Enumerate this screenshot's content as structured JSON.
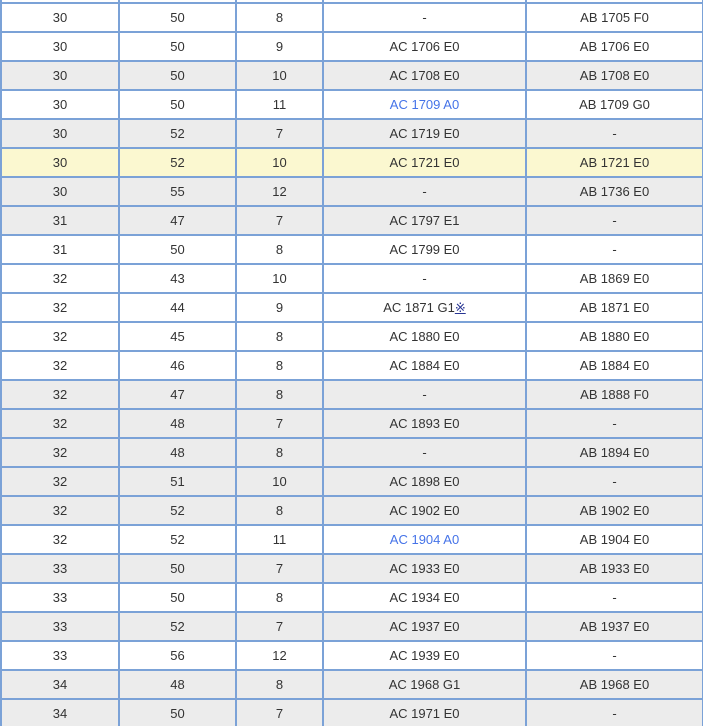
{
  "colors": {
    "border": "#7ba2d7",
    "text": "#333333",
    "row_white": "#ffffff",
    "row_gray": "#ececec",
    "row_yellow": "#fbf8d0",
    "link_blue": "#4573e8",
    "note_navy": "#283593"
  },
  "table": {
    "rows": [
      {
        "values": [
          "30",
          "50",
          "8",
          "-",
          "AB 1705 F0"
        ],
        "bg": "white"
      },
      {
        "values": [
          "30",
          "50",
          "9",
          "AC 1706 E0",
          "AB 1706 E0"
        ],
        "bg": "white"
      },
      {
        "values": [
          "30",
          "50",
          "10",
          "AC 1708 E0",
          "AB 1708 E0"
        ],
        "bg": "gray"
      },
      {
        "values": [
          "30",
          "50",
          "11",
          "AC 1709 A0",
          "AB 1709 G0"
        ],
        "bg": "white",
        "link_cell": 3
      },
      {
        "values": [
          "30",
          "52",
          "7",
          "AC 1719 E0",
          "-"
        ],
        "bg": "gray"
      },
      {
        "values": [
          "30",
          "52",
          "10",
          "AC 1721 E0",
          "AB 1721 E0"
        ],
        "bg": "yellow"
      },
      {
        "values": [
          "30",
          "55",
          "12",
          "-",
          "AB 1736 E0"
        ],
        "bg": "gray"
      },
      {
        "values": [
          "31",
          "47",
          "7",
          "AC 1797 E1",
          "-"
        ],
        "bg": "gray"
      },
      {
        "values": [
          "31",
          "50",
          "8",
          "AC 1799 E0",
          "-"
        ],
        "bg": "white"
      },
      {
        "values": [
          "32",
          "43",
          "10",
          "-",
          "AB 1869 E0"
        ],
        "bg": "white"
      },
      {
        "values": [
          "32",
          "44",
          "9",
          "AC 1871 G1",
          "AB 1871 E0"
        ],
        "bg": "white",
        "note_cell": 3,
        "note": "※"
      },
      {
        "values": [
          "32",
          "45",
          "8",
          "AC 1880 E0",
          "AB 1880 E0"
        ],
        "bg": "white"
      },
      {
        "values": [
          "32",
          "46",
          "8",
          "AC 1884 E0",
          "AB 1884 E0"
        ],
        "bg": "white"
      },
      {
        "values": [
          "32",
          "47",
          "8",
          "-",
          "AB 1888 F0"
        ],
        "bg": "gray"
      },
      {
        "values": [
          "32",
          "48",
          "7",
          "AC 1893 E0",
          "-"
        ],
        "bg": "gray"
      },
      {
        "values": [
          "32",
          "48",
          "8",
          "-",
          "AB 1894 E0"
        ],
        "bg": "gray"
      },
      {
        "values": [
          "32",
          "51",
          "10",
          "AC 1898 E0",
          "-"
        ],
        "bg": "gray"
      },
      {
        "values": [
          "32",
          "52",
          "8",
          "AC 1902 E0",
          "AB 1902 E0"
        ],
        "bg": "gray"
      },
      {
        "values": [
          "32",
          "52",
          "11",
          "AC 1904 A0",
          "AB 1904 E0"
        ],
        "bg": "white",
        "link_cell": 3
      },
      {
        "values": [
          "33",
          "50",
          "7",
          "AC 1933 E0",
          "AB 1933 E0"
        ],
        "bg": "gray"
      },
      {
        "values": [
          "33",
          "50",
          "8",
          "AC 1934 E0",
          "-"
        ],
        "bg": "white"
      },
      {
        "values": [
          "33",
          "52",
          "7",
          "AC 1937 E0",
          "AB 1937 E0"
        ],
        "bg": "gray"
      },
      {
        "values": [
          "33",
          "56",
          "12",
          "AC 1939 E0",
          "-"
        ],
        "bg": "white"
      },
      {
        "values": [
          "34",
          "48",
          "8",
          "AC 1968 G1",
          "AB 1968 E0"
        ],
        "bg": "gray"
      },
      {
        "values": [
          "34",
          "50",
          "7",
          "AC 1971 E0",
          "-"
        ],
        "bg": "gray"
      }
    ]
  }
}
